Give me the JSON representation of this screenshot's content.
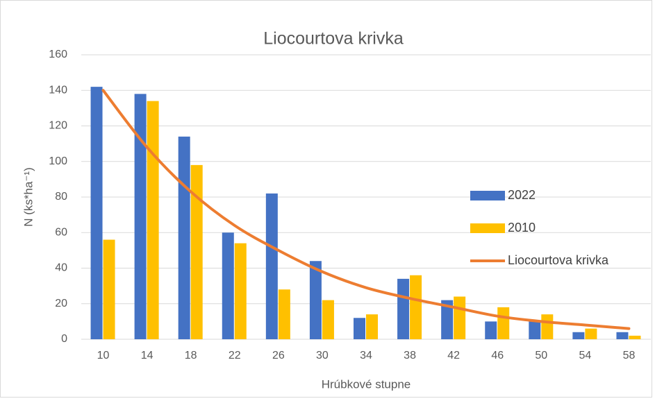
{
  "chart_data": {
    "type": "bar",
    "title": "Liocourtova krivka",
    "x_label": "Hrúbkové stupne",
    "y_label": "N (ks*ha⁻¹)",
    "categories": [
      "10",
      "14",
      "18",
      "22",
      "26",
      "30",
      "34",
      "38",
      "42",
      "46",
      "50",
      "54",
      "58"
    ],
    "series": [
      {
        "name": "2022",
        "color": "#4472c4",
        "values": [
          142,
          138,
          114,
          60,
          82,
          44,
          12,
          34,
          22,
          10,
          10,
          4,
          4
        ]
      },
      {
        "name": "2010",
        "color": "#ffc000",
        "values": [
          56,
          134,
          98,
          54,
          28,
          22,
          14,
          36,
          24,
          18,
          14,
          6,
          2
        ]
      },
      {
        "name": "Liocourtova krivka",
        "type": "line",
        "color": "#ed7d31",
        "values": [
          140,
          108,
          83,
          64,
          50,
          38,
          29,
          23,
          18,
          13,
          10,
          8,
          6
        ]
      }
    ],
    "ylim": [
      0,
      160
    ],
    "yticks": [
      0,
      20,
      40,
      60,
      80,
      100,
      120,
      140,
      160
    ],
    "grid": true,
    "legend": "right"
  }
}
